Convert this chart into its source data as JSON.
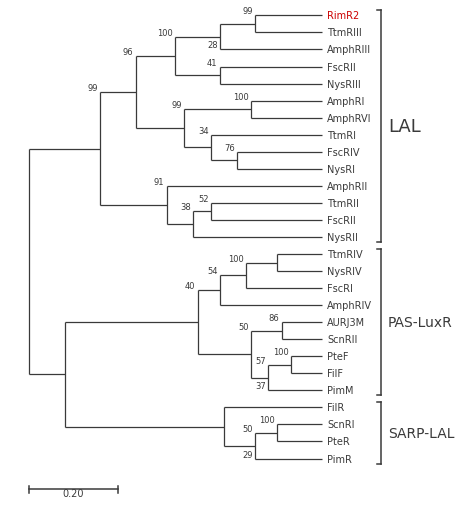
{
  "scale_bar_label": "0.20",
  "bg": "#ffffff",
  "col": "#3a3a3a",
  "red": "#cc0000",
  "lw": 0.9,
  "fs_leaf": 7.0,
  "fs_boot": 6.0,
  "fs_group": 13,
  "fs_group_small": 10,
  "leaves": [
    "RimR2",
    "TtmRIII",
    "AmphRIII",
    "FscRII",
    "NysRIII",
    "AmphRI",
    "AmphRVI",
    "TtmRI",
    "FscRIV",
    "NysRI",
    "AmphRII",
    "TtmRII",
    "FscRII_b",
    "NysRII",
    "TtmRIV",
    "NysRIV",
    "FscRI",
    "AmphRIV",
    "AURJ3M",
    "ScnRII",
    "PteF",
    "FilF",
    "PimM",
    "FilR",
    "ScnRI",
    "PteR",
    "PimR"
  ],
  "leaf_labels": {
    "RimR2": "RimR2",
    "TtmRIII": "TtmRIII",
    "AmphRIII": "AmphRIII",
    "FscRII": "FscRII",
    "NysRIII": "NysRIII",
    "AmphRI": "AmphRI",
    "AmphRVI": "AmphRVI",
    "TtmRI": "TtmRI",
    "FscRIV": "FscRIV",
    "NysRI": "NysRI",
    "AmphRII": "AmphRII",
    "TtmRII": "TtmRII",
    "FscRII_b": "FscRII",
    "NysRII": "NysRII",
    "TtmRIV": "TtmRIV",
    "NysRIV": "NysRIV",
    "FscRI": "FscRI",
    "AmphRIV": "AmphRIV",
    "AURJ3M": "AURJ3M",
    "ScnRII": "ScnRII",
    "PteF": "PteF",
    "FilF": "FilF",
    "PimM": "PimM",
    "FilR": "FilR",
    "ScnRI": "ScnRI",
    "PteR": "PteR",
    "PimR": "PimR"
  },
  "highlight": "RimR2"
}
